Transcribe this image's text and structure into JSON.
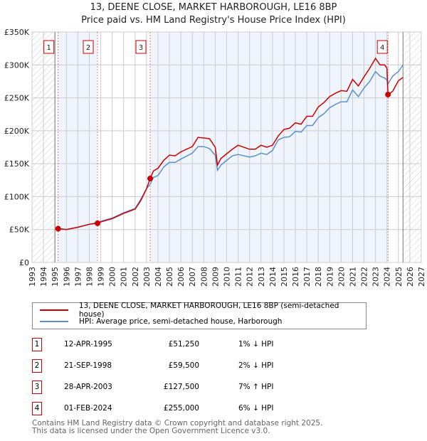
{
  "chart_data": {
    "type": "line",
    "title": "13, DEENE CLOSE, MARKET HARBOROUGH, LE16 8BP",
    "subtitle": "Price paid vs. HM Land Registry's House Price Index (HPI)",
    "xlim": [
      1993,
      2027
    ],
    "ylim": [
      0,
      350000
    ],
    "x_ticks": [
      "1993",
      "1994",
      "1995",
      "1996",
      "1997",
      "1998",
      "1999",
      "2000",
      "2001",
      "2002",
      "2003",
      "2004",
      "2005",
      "2006",
      "2007",
      "2008",
      "2009",
      "2010",
      "2011",
      "2012",
      "2013",
      "2014",
      "2015",
      "2016",
      "2017",
      "2018",
      "2019",
      "2020",
      "2021",
      "2022",
      "2023",
      "2024",
      "2025",
      "2026",
      "2027"
    ],
    "y_ticks": [
      {
        "v": 0,
        "l": "£0"
      },
      {
        "v": 50000,
        "l": "£50K"
      },
      {
        "v": 100000,
        "l": "£100K"
      },
      {
        "v": 150000,
        "l": "£150K"
      },
      {
        "v": 200000,
        "l": "£200K"
      },
      {
        "v": 250000,
        "l": "£250K"
      },
      {
        "v": 300000,
        "l": "£300K"
      },
      {
        "v": 350000,
        "l": "£350K"
      }
    ],
    "grid": true,
    "data_range": [
      1995.0,
      2025.4
    ],
    "series": [
      {
        "name": "13, DEENE CLOSE, MARKET HARBOROUGH, LE16 8BP (semi-detached house)",
        "color": "#cc0000",
        "x": [
          1995.28,
          1996,
          1997,
          1998,
          1998.72,
          1999,
          2000,
          2001,
          2002,
          2002.5,
          2003,
          2003.32,
          2003.6,
          2004,
          2004.5,
          2005,
          2005.5,
          2006,
          2007,
          2007.5,
          2008,
          2008.5,
          2009,
          2009.2,
          2009.5,
          2010,
          2010.5,
          2011,
          2012,
          2012.5,
          2013,
          2013.5,
          2014,
          2014.5,
          2015,
          2015.5,
          2016,
          2016.5,
          2017,
          2017.5,
          2018,
          2018.5,
          2019,
          2019.5,
          2020,
          2020.5,
          2021,
          2021.5,
          2022,
          2022.5,
          2023,
          2023.4,
          2023.8,
          2024.0,
          2024.09,
          2024.5,
          2025,
          2025.4
        ],
        "y": [
          51250,
          50000,
          53500,
          58000,
          59500,
          61500,
          66500,
          74500,
          81000,
          94000,
          112000,
          127500,
          139000,
          143000,
          155000,
          163000,
          162000,
          168000,
          176000,
          190000,
          189000,
          188000,
          175000,
          148000,
          158000,
          165000,
          172000,
          178000,
          172000,
          172000,
          178000,
          175000,
          178000,
          192000,
          202000,
          204000,
          212000,
          210000,
          222000,
          222000,
          236000,
          243000,
          252000,
          257000,
          261000,
          260000,
          278000,
          268000,
          282000,
          295000,
          310000,
          300000,
          300000,
          295000,
          255000,
          260000,
          276000,
          281000
        ]
      },
      {
        "name": "HPI: Average price, semi-detached house, Harborough",
        "color": "#5b8fd4",
        "x": [
          1995.28,
          1996,
          1997,
          1998,
          1998.72,
          1999,
          2000,
          2001,
          2002,
          2002.5,
          2003,
          2003.32,
          2003.6,
          2004,
          2004.5,
          2005,
          2005.5,
          2006,
          2007,
          2007.5,
          2008,
          2008.5,
          2009,
          2009.2,
          2009.5,
          2010,
          2010.5,
          2011,
          2012,
          2012.5,
          2013,
          2013.5,
          2014,
          2014.5,
          2015,
          2015.5,
          2016,
          2016.5,
          2017,
          2017.5,
          2018,
          2018.5,
          2019,
          2019.5,
          2020,
          2020.5,
          2021,
          2021.5,
          2022,
          2022.5,
          2023,
          2023.4,
          2023.8,
          2024.0,
          2024.09,
          2024.5,
          2025,
          2025.4
        ],
        "y": [
          51700,
          50000,
          53500,
          58000,
          60700,
          62500,
          67500,
          75500,
          82000,
          96000,
          112000,
          119000,
          129000,
          132000,
          145000,
          152000,
          152000,
          157000,
          166000,
          176000,
          176000,
          173000,
          163000,
          140000,
          148000,
          155000,
          162000,
          164000,
          160000,
          162000,
          166000,
          164000,
          170000,
          186000,
          190000,
          191000,
          199000,
          198000,
          208000,
          208000,
          220000,
          226000,
          235000,
          240000,
          244000,
          244000,
          262000,
          252000,
          265000,
          275000,
          290000,
          283000,
          280000,
          277000,
          271000,
          283000,
          290000,
          300000
        ]
      }
    ],
    "sales": [
      {
        "n": "1",
        "x": 1995.28,
        "y": 51250
      },
      {
        "n": "2",
        "x": 1998.72,
        "y": 59500
      },
      {
        "n": "3",
        "x": 2003.32,
        "y": 127500
      },
      {
        "n": "4",
        "x": 2024.09,
        "y": 255000
      }
    ]
  },
  "legend": {
    "property": "13, DEENE CLOSE, MARKET HARBOROUGH, LE16 8BP (semi-detached house)",
    "hpi": "HPI: Average price, semi-detached house, Harborough"
  },
  "table": [
    {
      "n": "1",
      "date": "12-APR-1995",
      "price": "£51,250",
      "hpi": "1% ↓ HPI"
    },
    {
      "n": "2",
      "date": "21-SEP-1998",
      "price": "£59,500",
      "hpi": "2% ↓ HPI"
    },
    {
      "n": "3",
      "date": "28-APR-2003",
      "price": "£127,500",
      "hpi": "7% ↑ HPI"
    },
    {
      "n": "4",
      "date": "01-FEB-2024",
      "price": "£255,000",
      "hpi": "6% ↓ HPI"
    }
  ],
  "footer": {
    "line1": "Contains HM Land Registry data © Crown copyright and database right 2025.",
    "line2": "This data is licensed under the Open Government Licence v3.0."
  }
}
